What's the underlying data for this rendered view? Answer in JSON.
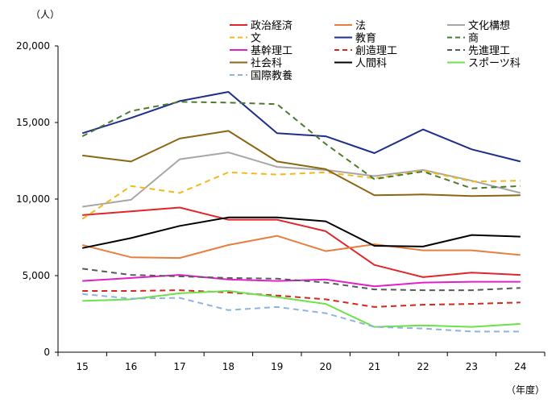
{
  "chart_data": {
    "type": "line",
    "y_unit": "（人）",
    "x_unit": "（年度）",
    "x": [
      "15",
      "16",
      "17",
      "18",
      "19",
      "20",
      "21",
      "22",
      "23",
      "24"
    ],
    "ylim": [
      0,
      20000
    ],
    "yticks": [
      "0",
      "5,000",
      "10,000",
      "15,000",
      "20,000"
    ],
    "grid": false,
    "legend": "top-right",
    "series": [
      {
        "name": "政治経済",
        "color": "#e0252b",
        "dash": "solid",
        "values": [
          8950,
          9200,
          9450,
          8650,
          8650,
          7900,
          5700,
          4900,
          5200,
          5050
        ]
      },
      {
        "name": "法",
        "color": "#e87d3e",
        "dash": "solid",
        "values": [
          7000,
          6200,
          6150,
          7000,
          7600,
          6600,
          7050,
          6650,
          6650,
          6350
        ]
      },
      {
        "name": "文化構想",
        "color": "#a6a6a6",
        "dash": "solid",
        "values": [
          9500,
          9950,
          12600,
          13050,
          12100,
          11900,
          11500,
          11900,
          11200,
          10400
        ]
      },
      {
        "name": "文",
        "color": "#f4b81c",
        "dash": "dashed",
        "values": [
          8700,
          10850,
          10400,
          11750,
          11600,
          11750,
          11350,
          11850,
          11150,
          11200
        ]
      },
      {
        "name": "教育",
        "color": "#1f2e8c",
        "dash": "solid",
        "values": [
          14300,
          15300,
          16400,
          17000,
          14300,
          14100,
          13000,
          14550,
          13250,
          12450
        ]
      },
      {
        "name": "商",
        "color": "#4e7a2e",
        "dash": "dashed",
        "values": [
          14100,
          15750,
          16350,
          16300,
          16200,
          13600,
          11300,
          11800,
          10700,
          10850
        ]
      },
      {
        "name": "基幹理工",
        "color": "#e020c8",
        "dash": "solid",
        "values": [
          4650,
          4850,
          5050,
          4750,
          4650,
          4750,
          4300,
          4550,
          4600,
          4600
        ]
      },
      {
        "name": "創造理工",
        "color": "#d9261c",
        "dash": "dashed",
        "values": [
          4000,
          4000,
          4050,
          3900,
          3700,
          3450,
          2950,
          3100,
          3150,
          3250
        ]
      },
      {
        "name": "先進理工",
        "color": "#595959",
        "dash": "dashed",
        "values": [
          5450,
          5050,
          4950,
          4850,
          4800,
          4550,
          4100,
          4050,
          4050,
          4200
        ]
      },
      {
        "name": "社会科",
        "color": "#8c6612",
        "dash": "solid",
        "values": [
          12850,
          12450,
          13950,
          14450,
          12450,
          11950,
          10250,
          10300,
          10200,
          10250
        ]
      },
      {
        "name": "人間科",
        "color": "#000000",
        "dash": "solid",
        "values": [
          6800,
          7450,
          8250,
          8800,
          8800,
          8550,
          6950,
          6900,
          7650,
          7550
        ]
      },
      {
        "name": "スポーツ科",
        "color": "#6be24a",
        "dash": "solid",
        "values": [
          3350,
          3450,
          3850,
          4000,
          3600,
          3150,
          1650,
          1750,
          1650,
          1850
        ]
      },
      {
        "name": "国際教養",
        "color": "#8fb3de",
        "dash": "dashed",
        "values": [
          3800,
          3500,
          3550,
          2750,
          2950,
          2550,
          1650,
          1550,
          1350,
          1350
        ]
      }
    ]
  }
}
